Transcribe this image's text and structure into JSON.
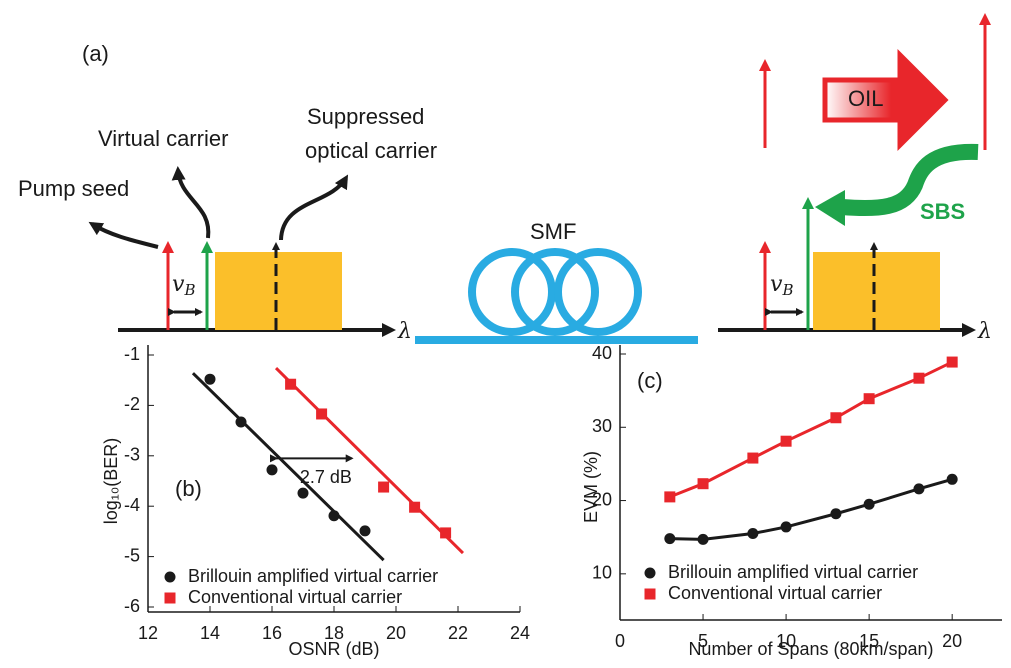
{
  "diagram": {
    "panel_label": "(a)",
    "pump_seed": "Pump seed",
    "virtual_carrier": "Virtual carrier",
    "suppressed_carrier": [
      "Suppressed",
      "optical carrier"
    ],
    "fiber": "SMF",
    "oil": "OIL",
    "sbs": "SBS",
    "wavelength": "λ",
    "brillouin_shift": {
      "symbol": "v",
      "subscript": "B"
    }
  },
  "chart_data": [
    {
      "type": "scatter",
      "panel_label": "(b)",
      "x_label": "OSNR (dB)",
      "y_label": "log₁₀(BER)",
      "xlim": [
        12,
        24
      ],
      "xticks": [
        12,
        14,
        16,
        18,
        20,
        22,
        24
      ],
      "ylim": [
        -6,
        -1
      ],
      "yticks": [
        -1,
        -2,
        -3,
        -4,
        -5,
        -6
      ],
      "legend": "lower left",
      "annotation": {
        "text": "2.7 dB",
        "x": [
          16,
          18.7
        ],
        "y": -3.05
      },
      "series": [
        {
          "name": "Brillouin amplified virtual carrier",
          "color": "#1a1a1a",
          "marker": "circle",
          "x": [
            14,
            15,
            16,
            17,
            18,
            19
          ],
          "values": [
            -1.48,
            -2.33,
            -3.28,
            -3.74,
            -4.19,
            -4.49
          ],
          "fit": {
            "x": [
              13.45,
              19.6
            ],
            "values": [
              -1.36,
              -5.07
            ]
          }
        },
        {
          "name": "Conventional virtual carrier",
          "color": "#e8262b",
          "marker": "square",
          "x": [
            16.6,
            17.6,
            19.6,
            20.6,
            21.6
          ],
          "values": [
            -1.58,
            -2.17,
            -3.62,
            -4.02,
            -4.53
          ],
          "fit": {
            "x": [
              16.13,
              22.16
            ],
            "values": [
              -1.26,
              -4.93
            ]
          }
        }
      ]
    },
    {
      "type": "line",
      "panel_label": "(c)",
      "x_label": "Number of Spans (80km/span)",
      "y_label": "EVM (%)",
      "xlim": [
        0,
        23
      ],
      "xticks": [
        0,
        5,
        10,
        15,
        20
      ],
      "ylim": [
        3.7,
        40
      ],
      "yticks": [
        10,
        20,
        30,
        40
      ],
      "legend": "lower left",
      "series": [
        {
          "name": "Brillouin amplified virtual carrier",
          "color": "#1a1a1a",
          "marker": "circle",
          "x": [
            3,
            5,
            8,
            10,
            13,
            15,
            18,
            20
          ],
          "values": [
            14.8,
            14.7,
            15.5,
            16.4,
            18.2,
            19.5,
            21.6,
            22.9
          ]
        },
        {
          "name": "Conventional virtual carrier",
          "color": "#e8262b",
          "marker": "square",
          "x": [
            3,
            5,
            8,
            10,
            13,
            15,
            18,
            20
          ],
          "values": [
            20.5,
            22.3,
            25.8,
            28.1,
            31.3,
            33.9,
            36.7,
            38.9
          ]
        }
      ]
    }
  ]
}
